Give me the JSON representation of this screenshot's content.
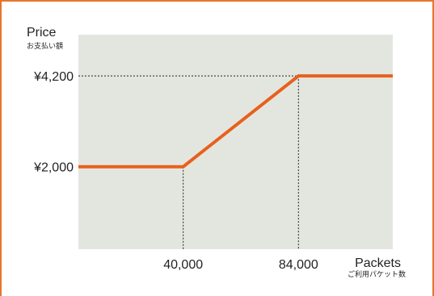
{
  "chart_data": {
    "type": "line",
    "ylabel": "Price",
    "ylabel_sub": "お支払い額",
    "xlabel": "Packets",
    "xlabel_sub": "ご利用パケット数",
    "x_ticks": [
      {
        "value": 40000,
        "label": "40,000"
      },
      {
        "value": 84000,
        "label": "84,000"
      }
    ],
    "y_ticks": [
      {
        "value": 2000,
        "label": "¥2,000"
      },
      {
        "value": 4200,
        "label": "¥4,200"
      }
    ],
    "xlim": [
      0,
      120000
    ],
    "ylim": [
      0,
      5200
    ],
    "series": [
      {
        "x": [
          0,
          40000,
          84000,
          120000
        ],
        "y": [
          2000,
          2000,
          4200,
          4200
        ]
      }
    ],
    "grid": false,
    "colors": {
      "frame": "#e8752e",
      "plot_background": "#e3e6df",
      "line": "#e8601e",
      "guide": "#231f20",
      "text": "#231f20"
    }
  }
}
